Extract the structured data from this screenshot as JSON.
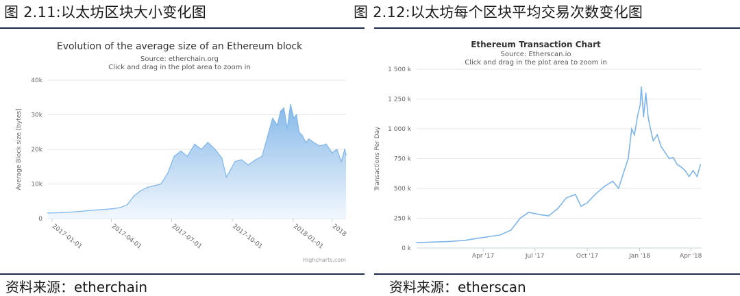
{
  "left": {
    "figure_title": "图 2.11:以太坊区块大小变化图",
    "source_note": "资料来源：etherchain",
    "chart_data": {
      "type": "area",
      "title": "Evolution of the average size of an Ethereum block",
      "subtitle": "Source: etherchain.org",
      "subtitle2": "Click and drag in the plot area to zoom in",
      "ylabel": "Average Block size [bytes]",
      "xlabel": "",
      "ylim": [
        0,
        40000
      ],
      "y_ticks": [
        0,
        10000,
        20000,
        30000,
        40000
      ],
      "y_tick_labels": [
        "0",
        "10k",
        "20k",
        "30k",
        "40k"
      ],
      "x_range": [
        "2016-12-26",
        "2018-03-22"
      ],
      "x_ticks": [
        "2017-01-01",
        "2017-04-01",
        "2017-07-01",
        "2017-10-01",
        "2018-01-01",
        "2018-03-01"
      ],
      "x_tick_labels": [
        "2017-01-01",
        "2017-04-01",
        "2017-07-01",
        "2017-10-01",
        "2018-01-01",
        "2018"
      ],
      "credit": "Highcharts.com",
      "grid": true,
      "line_color": "#7cb5ec",
      "fill_top_color": "#86b8e8",
      "fill_bottom_color": "#f2f7fd",
      "series": [
        {
          "x": [
            "2016-12-26",
            "2017-01-15",
            "2017-02-01",
            "2017-02-20",
            "2017-03-10",
            "2017-03-25",
            "2017-04-05",
            "2017-04-15",
            "2017-04-25",
            "2017-05-05",
            "2017-05-15",
            "2017-05-25",
            "2017-06-05",
            "2017-06-15",
            "2017-06-25",
            "2017-07-05",
            "2017-07-15",
            "2017-07-25",
            "2017-08-05",
            "2017-08-15",
            "2017-08-25",
            "2017-09-05",
            "2017-09-15",
            "2017-09-22",
            "2017-09-28",
            "2017-10-05",
            "2017-10-15",
            "2017-10-25",
            "2017-11-05",
            "2017-11-15",
            "2017-11-25",
            "2017-12-01",
            "2017-12-08",
            "2017-12-13",
            "2017-12-18",
            "2017-12-23",
            "2017-12-28",
            "2018-01-02",
            "2018-01-06",
            "2018-01-10",
            "2018-01-15",
            "2018-01-20",
            "2018-01-25",
            "2018-02-01",
            "2018-02-10",
            "2018-02-20",
            "2018-03-01",
            "2018-03-08",
            "2018-03-15",
            "2018-03-20",
            "2018-03-22"
          ],
          "values": [
            1600,
            1700,
            1900,
            2200,
            2500,
            2700,
            2900,
            3200,
            4000,
            6500,
            8000,
            9000,
            9500,
            10000,
            13000,
            18000,
            19500,
            18000,
            21500,
            20000,
            22000,
            20000,
            17500,
            12000,
            14000,
            16500,
            17000,
            15500,
            17000,
            18000,
            25000,
            29000,
            27000,
            31000,
            32000,
            26000,
            33000,
            29000,
            30000,
            25000,
            24000,
            22000,
            23000,
            22000,
            21000,
            21500,
            19000,
            20000,
            16500,
            20000,
            18500
          ]
        }
      ]
    }
  },
  "right": {
    "figure_title": "图 2.12:以太坊每个区块平均交易次数变化图",
    "source_note": "资料来源：etherscan",
    "chart_data": {
      "type": "line",
      "title": "Ethereum Transaction Chart",
      "subtitle": "Source: Etherscan.io",
      "subtitle2": "Click and drag in the plot area to zoom in",
      "ylabel": "Transactions Per Day",
      "xlabel": "",
      "ylim": [
        0,
        1500000
      ],
      "y_ticks": [
        0,
        250000,
        500000,
        750000,
        1000000,
        1250000,
        1500000
      ],
      "y_tick_labels": [
        "0 k",
        "250 k",
        "500 k",
        "750 k",
        "1 000 k",
        "1 250 k",
        "1 500 k"
      ],
      "x_range": [
        "2016-12-05",
        "2018-04-20"
      ],
      "x_ticks": [
        "2017-04-01",
        "2017-07-01",
        "2017-10-01",
        "2018-01-01",
        "2018-04-01"
      ],
      "x_tick_labels": [
        "Apr '17",
        "Jul '17",
        "Oct '17",
        "Jan '18",
        "Apr '18"
      ],
      "grid": true,
      "line_color": "#7cb5ec",
      "series": [
        {
          "x": [
            "2016-12-05",
            "2017-01-01",
            "2017-02-01",
            "2017-03-01",
            "2017-03-20",
            "2017-04-10",
            "2017-05-01",
            "2017-05-20",
            "2017-06-05",
            "2017-06-20",
            "2017-07-10",
            "2017-07-25",
            "2017-08-10",
            "2017-08-25",
            "2017-09-10",
            "2017-09-20",
            "2017-10-01",
            "2017-10-15",
            "2017-11-01",
            "2017-11-15",
            "2017-11-25",
            "2017-12-05",
            "2017-12-12",
            "2017-12-18",
            "2017-12-23",
            "2017-12-28",
            "2018-01-02",
            "2018-01-04",
            "2018-01-08",
            "2018-01-12",
            "2018-01-16",
            "2018-01-20",
            "2018-01-25",
            "2018-02-01",
            "2018-02-08",
            "2018-02-15",
            "2018-02-22",
            "2018-03-01",
            "2018-03-08",
            "2018-03-15",
            "2018-03-22",
            "2018-03-29",
            "2018-04-05",
            "2018-04-12",
            "2018-04-18"
          ],
          "values": [
            45000,
            50000,
            55000,
            65000,
            80000,
            95000,
            110000,
            150000,
            250000,
            300000,
            280000,
            270000,
            330000,
            420000,
            450000,
            350000,
            380000,
            450000,
            520000,
            560000,
            500000,
            650000,
            750000,
            1000000,
            950000,
            1100000,
            1200000,
            1350000,
            1100000,
            1300000,
            1100000,
            1000000,
            900000,
            950000,
            850000,
            800000,
            750000,
            760000,
            700000,
            680000,
            650000,
            600000,
            650000,
            600000,
            700000
          ]
        }
      ]
    }
  }
}
